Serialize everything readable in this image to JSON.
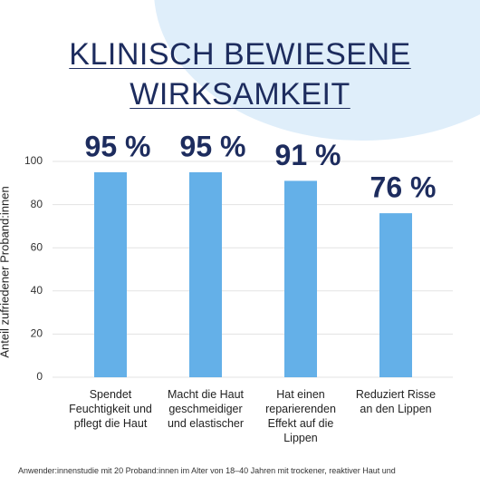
{
  "chart_data": {
    "type": "bar",
    "title": "KLINISCH BEWIESENE WIRKSAMKEIT",
    "y_label": "Anteil zufriedener Proband:innen",
    "categories": [
      "Spendet Feuchtigkeit und pflegt die Haut",
      "Macht die Haut geschmeidiger und elastischer",
      "Hat einen reparierenden Effekt auf die Lippen",
      "Reduziert Risse an den Lippen"
    ],
    "values": [
      95,
      95,
      91,
      76
    ],
    "value_labels": [
      "95 %",
      "95 %",
      "91 %",
      "76 %"
    ],
    "color": "#64b0e8",
    "ylim": [
      0,
      100
    ],
    "yticks": [
      0,
      20,
      40,
      60,
      80,
      100
    ],
    "grid": true,
    "footnote": "Anwender:innenstudie mit 20 Proband:innen im Alter von 18–40 Jahren mit trockener, reaktiver Haut und"
  }
}
